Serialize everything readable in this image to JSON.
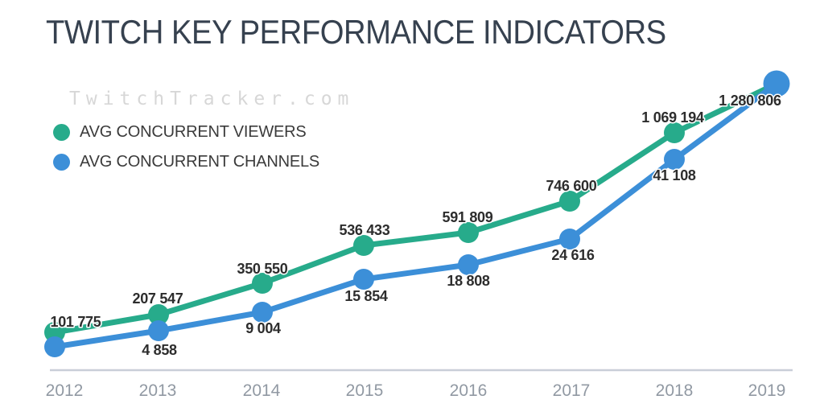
{
  "title": "TWITCH KEY PERFORMANCE INDICATORS",
  "watermark": "TwitchTracker.com",
  "legend": [
    {
      "label": "AVG CONCURRENT VIEWERS",
      "color": "#27ab8b"
    },
    {
      "label": "AVG CONCURRENT CHANNELS",
      "color": "#3c8fd8"
    }
  ],
  "chart_data": {
    "type": "line",
    "title": "TWITCH KEY PERFORMANCE INDICATORS",
    "x": [
      2012,
      2013,
      2014,
      2015,
      2016,
      2017,
      2018,
      2019
    ],
    "xlabel": "",
    "ylabel": "",
    "grid": false,
    "legend_position": "top-left",
    "series": [
      {
        "name": "AVG CONCURRENT VIEWERS",
        "color": "#27ab8b",
        "values": [
          101775,
          207547,
          350550,
          536433,
          591809,
          746600,
          1069194,
          1280806
        ],
        "labels": [
          "101 775",
          "207 547",
          "350 550",
          "536 433",
          "591 809",
          "746 600",
          "1 069 194",
          "1 280 806"
        ]
      },
      {
        "name": "AVG CONCURRENT CHANNELS",
        "color": "#3c8fd8",
        "values": [
          null,
          4858,
          9004,
          15854,
          18808,
          24616,
          41108,
          null
        ],
        "labels": [
          "",
          "4 858",
          "9 004",
          "15 854",
          "18 808",
          "24 616",
          "41 108",
          ""
        ]
      }
    ],
    "axis_line_color": "#c9ced8",
    "label_color": "#2d2d2d",
    "tick_color": "#9199a3"
  }
}
